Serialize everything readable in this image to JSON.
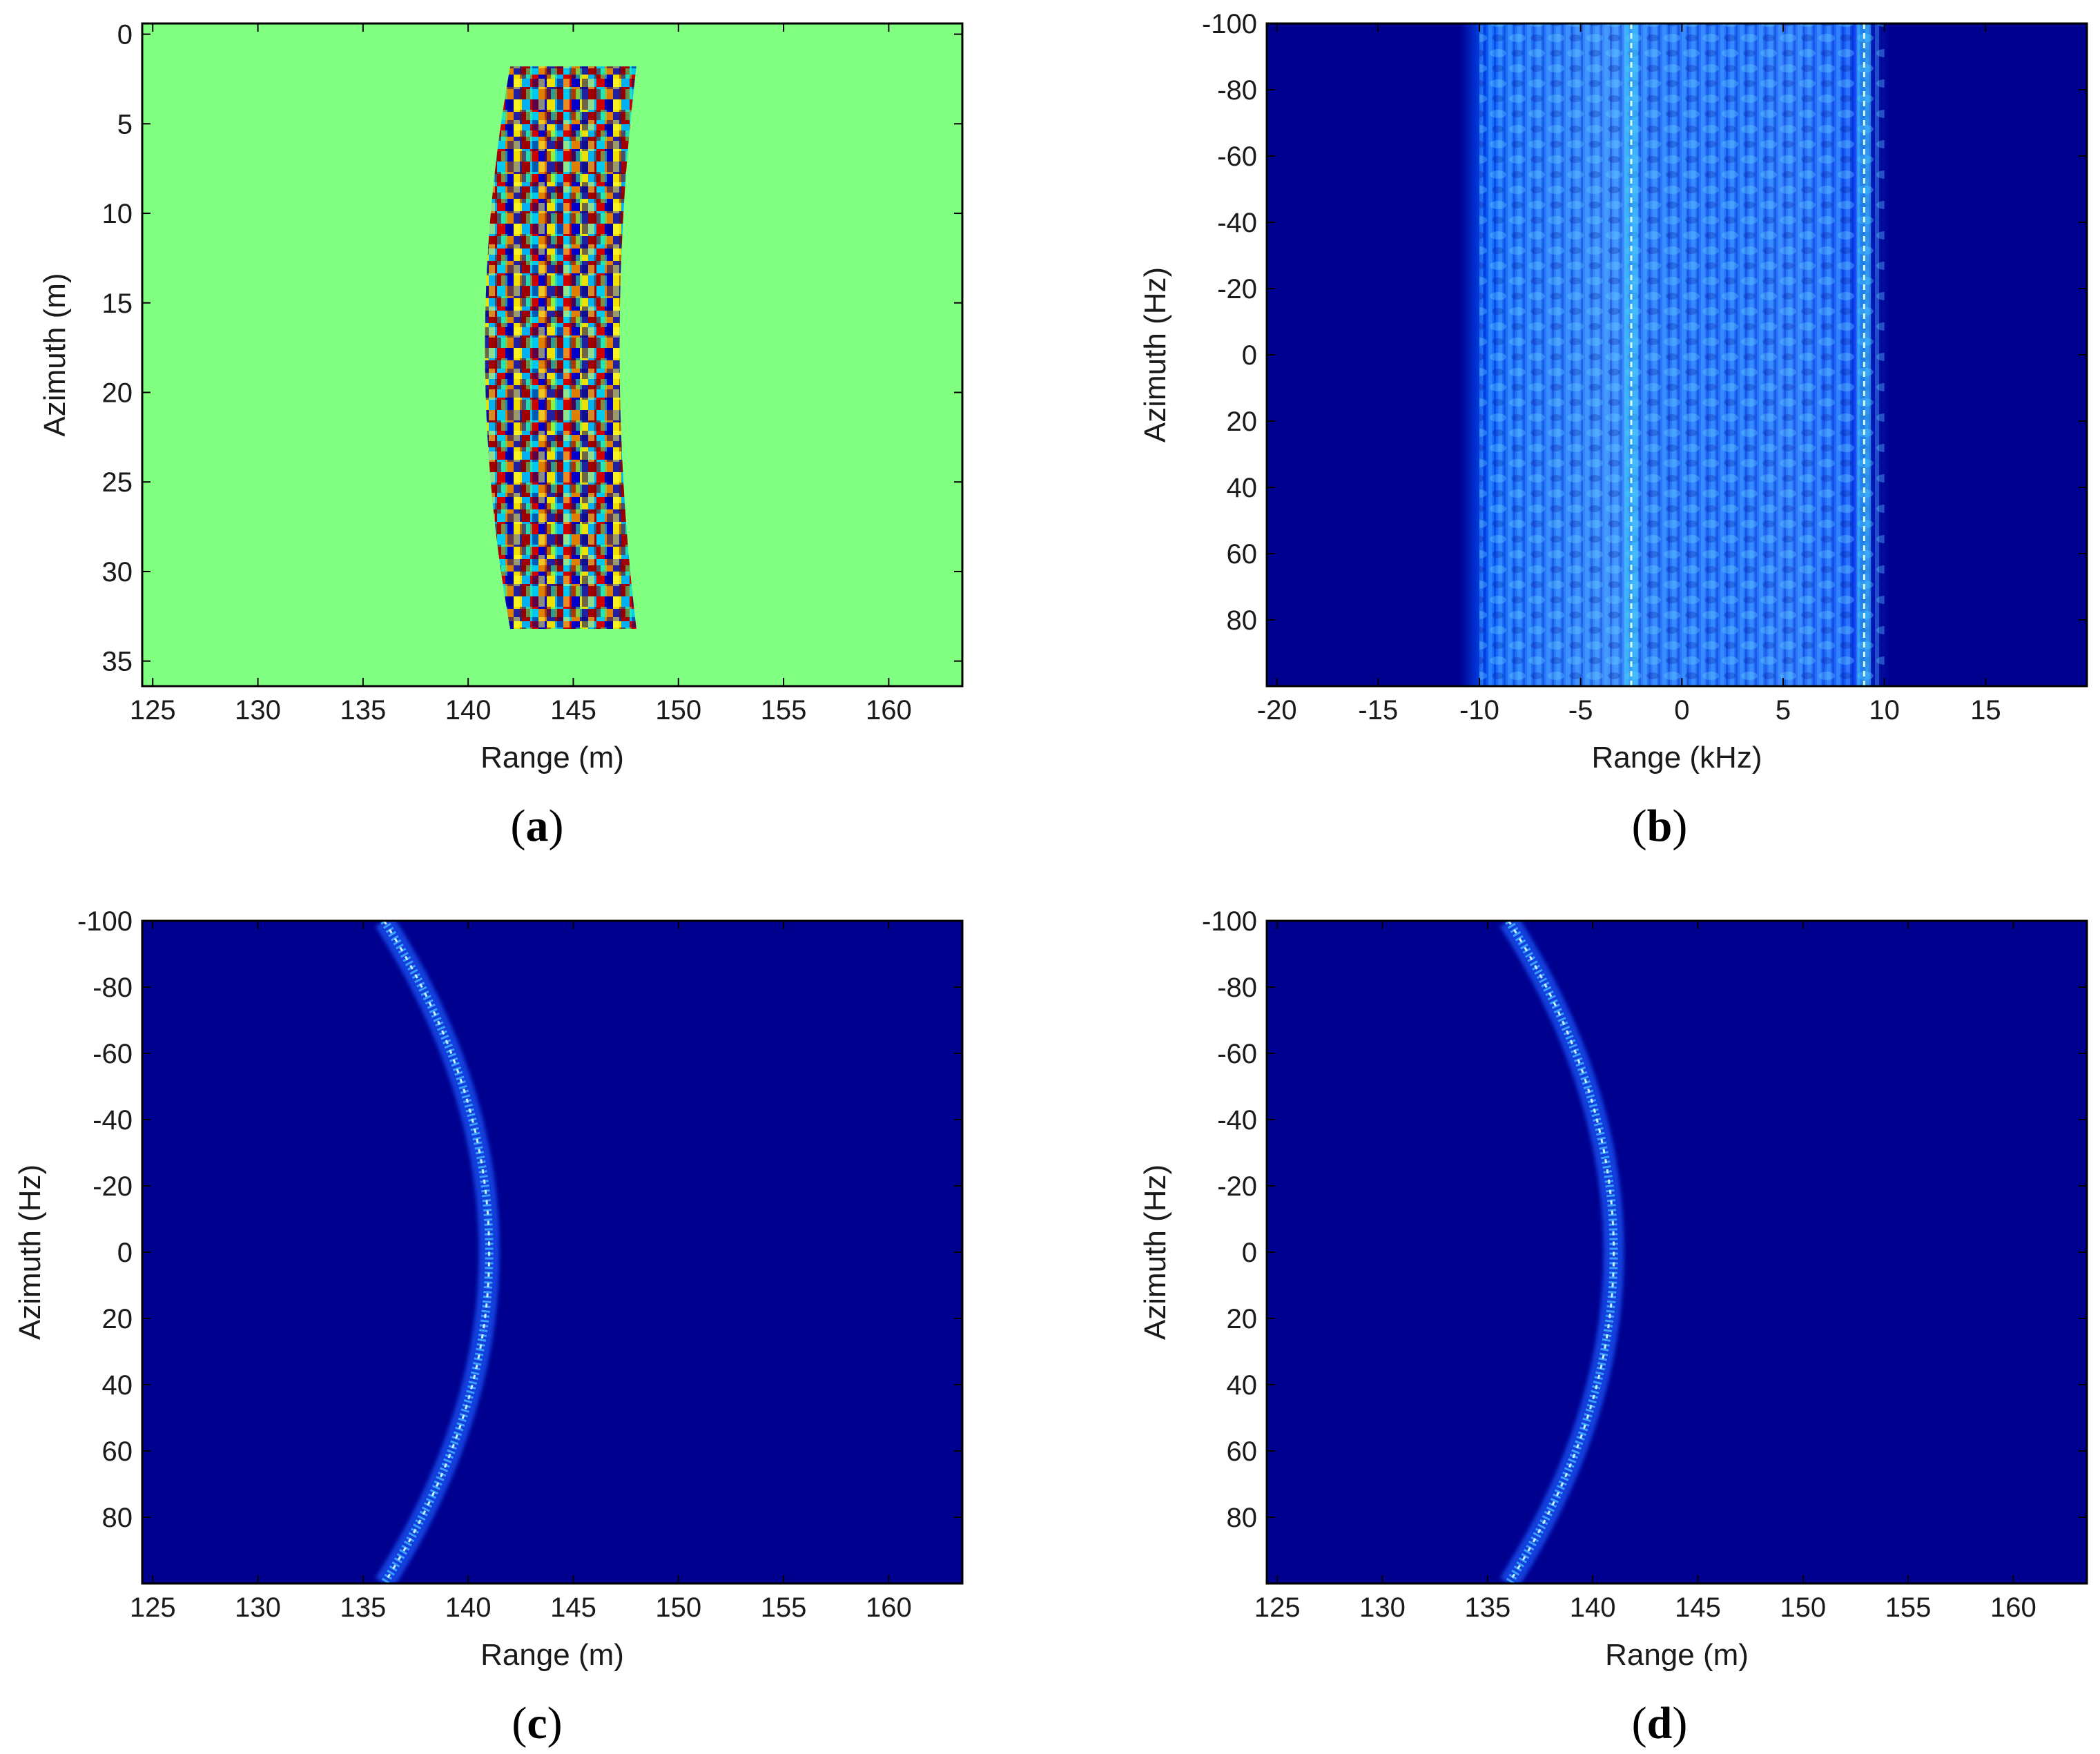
{
  "colors": {
    "background_green": "#80ff80",
    "jet_dark_blue": "#00008f",
    "frame": "#000000"
  },
  "chart_data": [
    {
      "id": "a",
      "type": "heatmap",
      "panel_label": "a",
      "title": "",
      "xlabel": "Range (m)",
      "ylabel": "Azimuth (m)",
      "xlim": [
        124.5,
        163.5
      ],
      "ylim": [
        36.4,
        -0.6
      ],
      "y_reversed": true,
      "xticks": [
        125,
        130,
        135,
        140,
        145,
        150,
        155,
        160
      ],
      "xtick_labels": [
        "125",
        "130",
        "135",
        "140",
        "145",
        "150",
        "155",
        "160"
      ],
      "yticks": [
        0,
        5,
        10,
        15,
        20,
        25,
        30,
        35
      ],
      "ytick_labels": [
        "0",
        "5",
        "10",
        "15",
        "20",
        "25",
        "30",
        "35"
      ],
      "background": "green (zero value)",
      "signal_region": {
        "azimuth_range_m": [
          1.8,
          33.2
        ],
        "range_left_at_top_m": 142.0,
        "range_right_at_top_m": 148.0,
        "range_left_at_middle_m": 140.8,
        "range_right_at_middle_m": 147.2,
        "range_left_at_bottom_m": 142.0,
        "range_right_at_bottom_m": 148.0
      }
    },
    {
      "id": "b",
      "type": "heatmap",
      "panel_label": "b",
      "title": "",
      "xlabel": "Range (kHz)",
      "ylabel": "Azimuth (Hz)",
      "xlim": [
        -20.5,
        20
      ],
      "ylim": [
        100,
        -100
      ],
      "y_reversed": true,
      "xticks": [
        -20,
        -15,
        -10,
        -5,
        0,
        5,
        10,
        15
      ],
      "xtick_labels": [
        "-20",
        "-15",
        "-10",
        "-5",
        "0",
        "5",
        "10",
        "15"
      ],
      "yticks": [
        -100,
        -80,
        -60,
        -40,
        -20,
        0,
        20,
        40,
        60,
        80
      ],
      "ytick_labels": [
        "-100",
        "-80",
        "-60",
        "-40",
        "-20",
        "0",
        "20",
        "40",
        "60",
        "80"
      ],
      "signal_band_khz": [
        -10,
        10
      ],
      "bright_lines_khz": [
        -2.5,
        9
      ]
    },
    {
      "id": "c",
      "type": "heatmap",
      "panel_label": "c",
      "title": "",
      "xlabel": "Range (m)",
      "ylabel": "Azimuth (Hz)",
      "xlim": [
        124.5,
        163.5
      ],
      "ylim": [
        100,
        -100
      ],
      "y_reversed": true,
      "xticks": [
        125,
        130,
        135,
        140,
        145,
        150,
        155,
        160
      ],
      "xtick_labels": [
        "125",
        "130",
        "135",
        "140",
        "145",
        "150",
        "155",
        "160"
      ],
      "yticks": [
        -100,
        -80,
        -60,
        -40,
        -20,
        0,
        20,
        40,
        60,
        80
      ],
      "ytick_labels": [
        "-100",
        "-80",
        "-60",
        "-40",
        "-20",
        "0",
        "20",
        "40",
        "60",
        "80"
      ],
      "curve": {
        "description": "range migration curve",
        "range_at_azimuth_minus100_hz": 136.0,
        "range_at_azimuth_0_hz": 141.0,
        "range_at_azimuth_100_hz": 136.0
      }
    },
    {
      "id": "d",
      "type": "heatmap",
      "panel_label": "d",
      "title": "",
      "xlabel": "Range (m)",
      "ylabel": "Azimuth (Hz)",
      "xlim": [
        124.5,
        163.5
      ],
      "ylim": [
        100,
        -100
      ],
      "y_reversed": true,
      "xticks": [
        125,
        130,
        135,
        140,
        145,
        150,
        155,
        160
      ],
      "xtick_labels": [
        "125",
        "130",
        "135",
        "140",
        "145",
        "150",
        "155",
        "160"
      ],
      "yticks": [
        -100,
        -80,
        -60,
        -40,
        -20,
        0,
        20,
        40,
        60,
        80
      ],
      "ytick_labels": [
        "-100",
        "-80",
        "-60",
        "-40",
        "-20",
        "0",
        "20",
        "40",
        "60",
        "80"
      ],
      "curve": {
        "description": "range migration curve",
        "range_at_azimuth_minus100_hz": 136.0,
        "range_at_azimuth_0_hz": 141.0,
        "range_at_azimuth_100_hz": 136.0
      }
    }
  ]
}
